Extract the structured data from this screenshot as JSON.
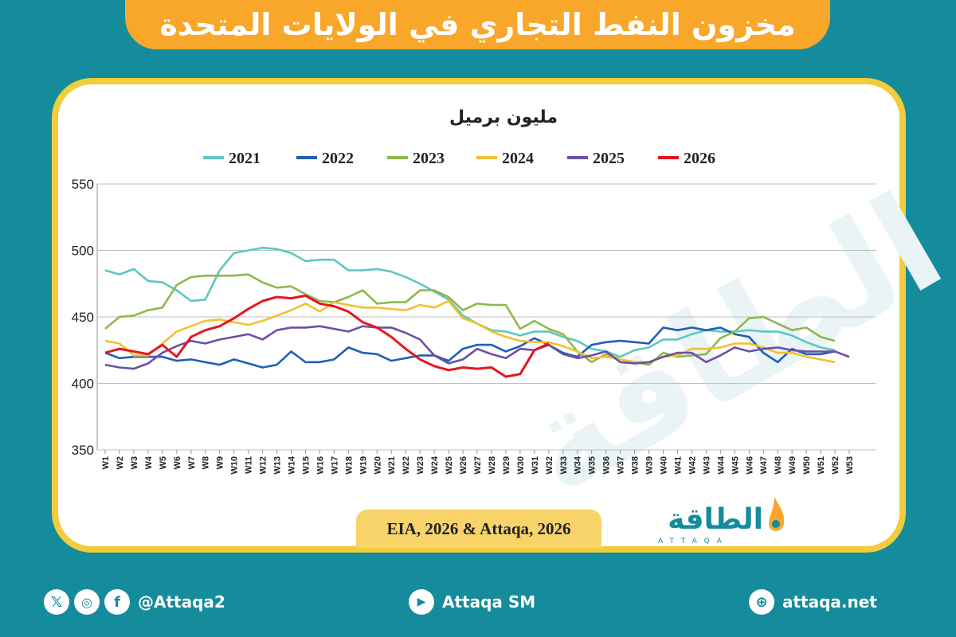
{
  "header": {
    "title": "مخزون النفط التجاري في الولايات المتحدة"
  },
  "source": "EIA, 2026 & Attaqa, 2026",
  "logo": {
    "text": "الطاقة",
    "sub": "ATTAQA"
  },
  "footer": {
    "social_handle": "@Attaqa2",
    "youtube": "Attaqa SM",
    "website": "attaqa.net",
    "icons": [
      "x-icon",
      "instagram-icon",
      "facebook-icon",
      "youtube-icon",
      "globe-icon"
    ]
  },
  "colors": {
    "2021": "#5cc8c2",
    "2022": "#1f5fb5",
    "2023": "#8fb84c",
    "2024": "#f4c02f",
    "2025": "#6f4ea3",
    "2026": "#e5161f"
  },
  "chart_data": {
    "type": "line",
    "title": "مليون برميل",
    "ylim": [
      350,
      550
    ],
    "yticks": [
      350,
      400,
      450,
      500,
      550
    ],
    "grid": true,
    "legend_position": "top",
    "categories": [
      "W1",
      "W2",
      "W3",
      "W4",
      "W5",
      "W6",
      "W7",
      "W8",
      "W9",
      "W10",
      "W11",
      "W12",
      "W13",
      "W14",
      "W15",
      "W16",
      "W17",
      "W18",
      "W19",
      "W20",
      "W21",
      "W22",
      "W23",
      "W24",
      "W25",
      "W26",
      "W27",
      "W28",
      "W29",
      "W30",
      "W31",
      "W32",
      "W33",
      "W34",
      "W35",
      "W36",
      "W37",
      "W38",
      "W39",
      "W40",
      "W41",
      "W42",
      "W43",
      "W44",
      "W45",
      "W46",
      "W47",
      "W48",
      "W49",
      "W50",
      "W51",
      "W52",
      "W53"
    ],
    "series": [
      {
        "name": "2021",
        "values": [
          485,
          482,
          486,
          477,
          476,
          470,
          462,
          463,
          485,
          498,
          500,
          502,
          501,
          498,
          492,
          493,
          493,
          485,
          485,
          486,
          484,
          480,
          475,
          469,
          463,
          451,
          445,
          440,
          439,
          436,
          439,
          439,
          435,
          432,
          426,
          424,
          420,
          425,
          427,
          433,
          433,
          437,
          440,
          439,
          439,
          440,
          439,
          439,
          436,
          431,
          427,
          425,
          null
        ]
      },
      {
        "name": "2022",
        "values": [
          423,
          419,
          420,
          420,
          420,
          417,
          418,
          416,
          414,
          418,
          415,
          412,
          414,
          424,
          416,
          416,
          418,
          427,
          423,
          422,
          417,
          419,
          421,
          421,
          417,
          426,
          429,
          429,
          424,
          428,
          434,
          429,
          423,
          420,
          429,
          431,
          432,
          431,
          430,
          442,
          440,
          442,
          440,
          442,
          437,
          435,
          423,
          416,
          426,
          422,
          422,
          424,
          null
        ]
      },
      {
        "name": "2023",
        "values": [
          441,
          450,
          451,
          455,
          457,
          474,
          480,
          481,
          481,
          481,
          482,
          476,
          472,
          473,
          467,
          462,
          461,
          465,
          470,
          460,
          461,
          461,
          470,
          470,
          465,
          455,
          460,
          459,
          459,
          441,
          447,
          441,
          437,
          424,
          416,
          422,
          418,
          416,
          414,
          423,
          420,
          421,
          422,
          434,
          439,
          449,
          450,
          445,
          440,
          442,
          435,
          432,
          null
        ]
      },
      {
        "name": "2024",
        "values": [
          432,
          430,
          421,
          421,
          430,
          439,
          443,
          447,
          448,
          446,
          444,
          447,
          451,
          455,
          460,
          454,
          461,
          459,
          457,
          457,
          456,
          455,
          459,
          457,
          462,
          449,
          445,
          439,
          435,
          432,
          431,
          431,
          428,
          424,
          419,
          420,
          418,
          416,
          416,
          420,
          421,
          426,
          426,
          427,
          430,
          430,
          427,
          423,
          423,
          420,
          418,
          416,
          null
        ]
      },
      {
        "name": "2025",
        "values": [
          414,
          412,
          411,
          415,
          423,
          428,
          432,
          430,
          433,
          435,
          437,
          433,
          440,
          442,
          442,
          443,
          441,
          439,
          443,
          442,
          442,
          438,
          433,
          421,
          415,
          418,
          426,
          422,
          419,
          426,
          425,
          429,
          422,
          419,
          421,
          424,
          416,
          415,
          416,
          420,
          423,
          423,
          416,
          421,
          427,
          424,
          426,
          427,
          425,
          424,
          424,
          424,
          420
        ]
      },
      {
        "name": "2026",
        "values": [
          423,
          426,
          424,
          422,
          429,
          420,
          435,
          440,
          443,
          449,
          456,
          462,
          465,
          464,
          466,
          460,
          458,
          454,
          446,
          442,
          435,
          426,
          418,
          413,
          410,
          412,
          411,
          412,
          405,
          407,
          425,
          430,
          null,
          null,
          null,
          null,
          null,
          null,
          null,
          null,
          null,
          null,
          null,
          null,
          null,
          null,
          null,
          null,
          null,
          null,
          null,
          null,
          null
        ]
      }
    ]
  }
}
